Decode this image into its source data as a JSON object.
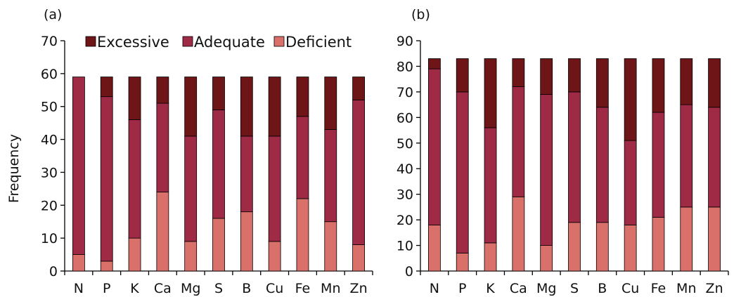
{
  "chart_data": [
    {
      "panel_label": "(a)",
      "type": "bar",
      "stacked": true,
      "categories": [
        "N",
        "P",
        "K",
        "Ca",
        "Mg",
        "S",
        "B",
        "Cu",
        "Fe",
        "Mn",
        "Zn"
      ],
      "series": [
        {
          "name": "Deficient",
          "color": "#d9706a",
          "values": [
            5,
            3,
            10,
            24,
            9,
            16,
            18,
            9,
            22,
            15,
            8
          ]
        },
        {
          "name": "Adequate",
          "color": "#9e2a45",
          "values": [
            54,
            50,
            36,
            27,
            32,
            33,
            23,
            32,
            25,
            28,
            44
          ]
        },
        {
          "name": "Excessive",
          "color": "#6e1518",
          "values": [
            0,
            6,
            13,
            8,
            18,
            10,
            18,
            18,
            12,
            16,
            7
          ]
        }
      ],
      "ylabel": "Frequency",
      "ylim": [
        0,
        70
      ],
      "yticks": [
        0,
        10,
        20,
        30,
        40,
        50,
        60,
        70
      ],
      "legend": [
        "Excessive",
        "Adequate",
        "Deficient"
      ],
      "legend_position": "top",
      "grid": false
    },
    {
      "panel_label": "(b)",
      "type": "bar",
      "stacked": true,
      "categories": [
        "N",
        "P",
        "K",
        "Ca",
        "Mg",
        "S",
        "B",
        "Cu",
        "Fe",
        "Mn",
        "Zn"
      ],
      "series": [
        {
          "name": "Deficient",
          "color": "#d9706a",
          "values": [
            18,
            7,
            11,
            29,
            10,
            19,
            19,
            18,
            21,
            25,
            25
          ]
        },
        {
          "name": "Adequate",
          "color": "#9e2a45",
          "values": [
            61,
            63,
            45,
            43,
            59,
            51,
            45,
            33,
            41,
            40,
            39
          ]
        },
        {
          "name": "Excessive",
          "color": "#6e1518",
          "values": [
            4,
            13,
            27,
            11,
            14,
            13,
            19,
            32,
            21,
            18,
            19
          ]
        }
      ],
      "ylabel": "",
      "ylim": [
        0,
        90
      ],
      "yticks": [
        0,
        10,
        20,
        30,
        40,
        50,
        60,
        70,
        80,
        90
      ],
      "legend": [],
      "grid": false
    }
  ]
}
